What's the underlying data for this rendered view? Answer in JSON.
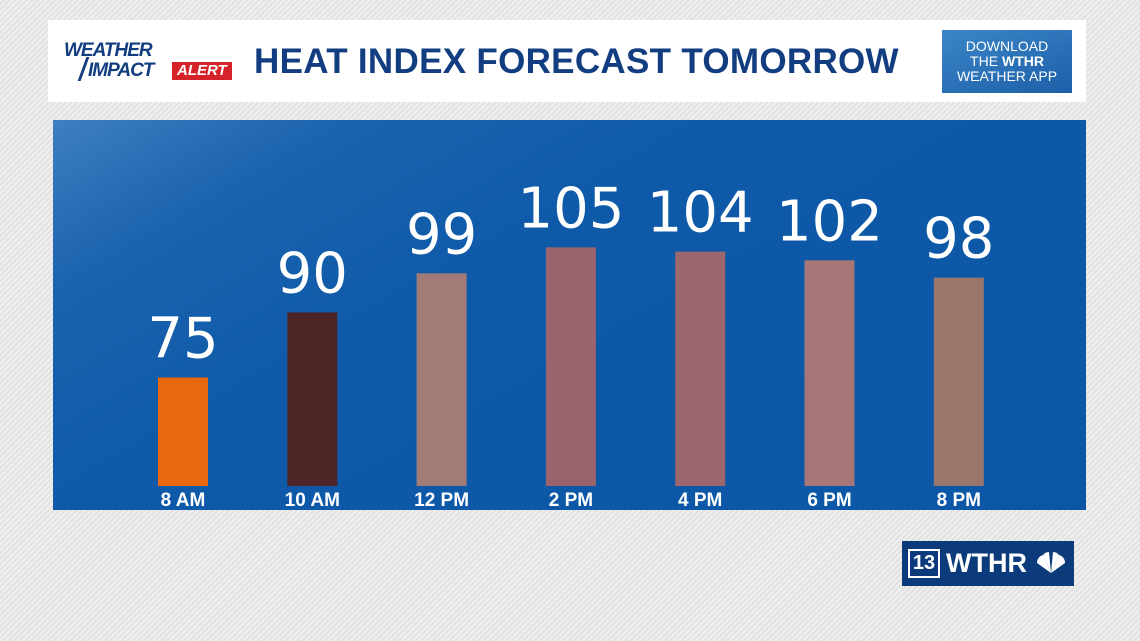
{
  "header": {
    "logo_line1": "WEATHER",
    "logo_line2": "IMPACT",
    "logo_badge": "ALERT",
    "title": "HEAT INDEX FORECAST TOMORROW",
    "download_line1": "DOWNLOAD",
    "download_line2_prefix": "THE ",
    "download_line2_bold": "WTHR",
    "download_line3": "WEATHER APP"
  },
  "brand": {
    "channel": "13",
    "name": "WTHR",
    "network_icon": "peacock-icon"
  },
  "colors": {
    "plot_background": "#0b57a5",
    "title": "#123d80",
    "alert_badge": "#d6232a"
  },
  "chart_data": {
    "type": "bar",
    "title": "HEAT INDEX FORECAST TOMORROW",
    "xlabel": "",
    "ylabel": "",
    "categories": [
      "8 AM",
      "10 AM",
      "12 PM",
      "2 PM",
      "4 PM",
      "6 PM",
      "8 PM"
    ],
    "values": [
      75,
      90,
      99,
      105,
      104,
      102,
      98
    ],
    "bar_colors": [
      "#e8680d",
      "#4e2527",
      "#a17c77",
      "#9b636c",
      "#9c676e",
      "#a77676",
      "#9a766d"
    ],
    "ylim": [
      50,
      110
    ],
    "grid": false,
    "data_labels": true
  }
}
